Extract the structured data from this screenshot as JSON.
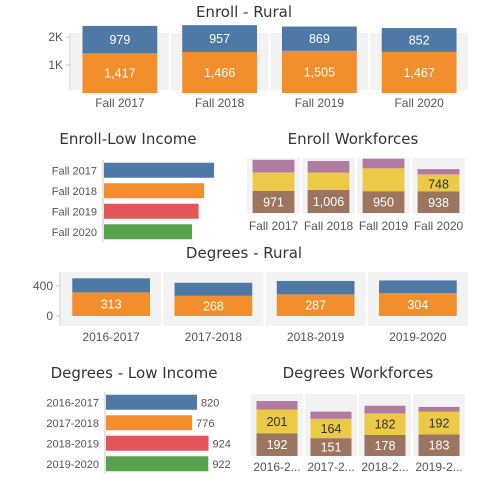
{
  "colors": {
    "blue": "#4e79a7",
    "orange": "#f28e2b",
    "red": "#e15759",
    "green": "#59a14f",
    "purple": "#b07aa1",
    "yellow": "#edc948",
    "brown": "#9c755f",
    "panel": "#f3f3f3",
    "axis": "#c8c8c8"
  },
  "chart_data": [
    {
      "id": "enroll_rural",
      "type": "bar",
      "stacked": true,
      "title": "Enroll - Rural",
      "categories": [
        "Fall 2017",
        "Fall 2018",
        "Fall 2019",
        "Fall 2020"
      ],
      "series": [
        {
          "color": "orange",
          "values": [
            1417,
            1466,
            1505,
            1467
          ],
          "labels": [
            "1,417",
            "1,466",
            "1,505",
            "1,467"
          ]
        },
        {
          "color": "blue",
          "values": [
            979,
            957,
            869,
            852
          ],
          "labels": [
            "979",
            "957",
            "869",
            "852"
          ]
        }
      ],
      "yticks": [
        {
          "value": 1000,
          "label": "1K"
        },
        {
          "value": 2000,
          "label": "2K"
        }
      ],
      "ylim": [
        0,
        2500
      ]
    },
    {
      "id": "enroll_low_income",
      "type": "bar",
      "orientation": "horizontal",
      "title": "Enroll-Low Income",
      "categories": [
        "Fall 2017",
        "Fall 2018",
        "Fall 2019",
        "Fall 2020"
      ],
      "values": [
        1000,
        910,
        860,
        800
      ],
      "colors": [
        "blue",
        "orange",
        "red",
        "green"
      ]
    },
    {
      "id": "enroll_workforces",
      "type": "bar",
      "stacked": true,
      "title": "Enroll Workforces",
      "categories": [
        "Fall 2017",
        "Fall 2018",
        "Fall 2019",
        "Fall 2020"
      ],
      "series": [
        {
          "color": "brown",
          "values": [
            971,
            1006,
            950,
            938
          ],
          "labels": [
            "971",
            "1,006",
            "950",
            "938"
          ]
        },
        {
          "color": "yellow",
          "values": [
            800,
            760,
            1000,
            748
          ],
          "labels": [
            "",
            "",
            "",
            "748"
          ]
        },
        {
          "color": "purple",
          "values": [
            550,
            500,
            420,
            230
          ],
          "labels": [
            "",
            "",
            "",
            ""
          ]
        }
      ],
      "ylim": [
        0,
        2400
      ]
    },
    {
      "id": "degrees_rural",
      "type": "bar",
      "stacked": true,
      "title": "Degrees - Rural",
      "categories": [
        "2016-2017",
        "2017-2018",
        "2018-2019",
        "2019-2020"
      ],
      "series": [
        {
          "color": "orange",
          "values": [
            313,
            268,
            287,
            304
          ],
          "labels": [
            "313",
            "268",
            "287",
            "304"
          ]
        },
        {
          "color": "blue",
          "values": [
            187,
            173,
            178,
            168
          ],
          "labels": [
            "",
            "",
            "",
            ""
          ]
        }
      ],
      "yticks": [
        {
          "value": 0,
          "label": "0"
        },
        {
          "value": 400,
          "label": "400"
        }
      ],
      "ylim": [
        -60,
        540
      ]
    },
    {
      "id": "degrees_low_income",
      "type": "bar",
      "orientation": "horizontal",
      "title": "Degrees - Low Income",
      "categories": [
        "2016-2017",
        "2017-2018",
        "2018-2019",
        "2019-2020"
      ],
      "values": [
        820,
        776,
        924,
        922
      ],
      "labels": [
        "820",
        "776",
        "924",
        "922"
      ],
      "colors": [
        "blue",
        "orange",
        "red",
        "green"
      ]
    },
    {
      "id": "degrees_workforces",
      "type": "bar",
      "stacked": true,
      "title": "Degrees Workforces",
      "categories": [
        "2016-2...",
        "2017-2...",
        "2018-2...",
        "2019-2..."
      ],
      "series": [
        {
          "color": "brown",
          "values": [
            192,
            151,
            178,
            183
          ],
          "labels": [
            "192",
            "151",
            "178",
            "183"
          ]
        },
        {
          "color": "yellow",
          "values": [
            201,
            164,
            182,
            192
          ],
          "labels": [
            "201",
            "164",
            "182",
            "192"
          ]
        },
        {
          "color": "purple",
          "values": [
            72,
            60,
            65,
            40
          ],
          "labels": [
            "",
            "",
            "",
            ""
          ]
        }
      ],
      "ylim": [
        0,
        520
      ]
    }
  ]
}
